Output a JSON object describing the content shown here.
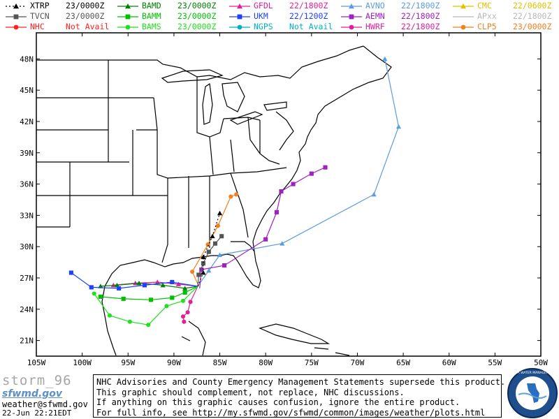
{
  "legend": [
    {
      "code": "XTRP",
      "time": "23/0000Z",
      "color": "#000000",
      "marker": "tri",
      "dash": "2,3"
    },
    {
      "code": "TVCN",
      "time": "23/0000Z",
      "color": "#555555",
      "marker": "square",
      "dash": ""
    },
    {
      "code": "NHC",
      "time": "Not Avail",
      "color": "#ff2020",
      "marker": "circle",
      "dash": ""
    },
    {
      "code": "BAMD",
      "time": "23/0000Z",
      "color": "#008000",
      "marker": "tri",
      "dash": ""
    },
    {
      "code": "BAMM",
      "time": "23/0000Z",
      "color": "#00c000",
      "marker": "square",
      "dash": ""
    },
    {
      "code": "BAMS",
      "time": "23/0000Z",
      "color": "#20e020",
      "marker": "circle",
      "dash": ""
    },
    {
      "code": "GFDL",
      "time": "22/1800Z",
      "color": "#e0209a",
      "marker": "tri",
      "dash": ""
    },
    {
      "code": "UKM",
      "time": "22/1200Z",
      "color": "#2040ff",
      "marker": "square",
      "dash": ""
    },
    {
      "code": "NGPS",
      "time": "Not Avail",
      "color": "#00b0c0",
      "marker": "circle",
      "dash": ""
    },
    {
      "code": "AVNO",
      "time": "22/1800Z",
      "color": "#5b9be0",
      "marker": "tri",
      "dash": ""
    },
    {
      "code": "AEMN",
      "time": "22/1800Z",
      "color": "#a020c0",
      "marker": "square",
      "dash": ""
    },
    {
      "code": "HWRF",
      "time": "22/1800Z",
      "color": "#e0209a",
      "marker": "circle",
      "dash": ""
    },
    {
      "code": "CMC",
      "time": "22/0600Z",
      "color": "#e0c000",
      "marker": "tri",
      "dash": ""
    },
    {
      "code": "APxx",
      "time": "22/1800Z",
      "color": "#b8b8b8",
      "marker": "none",
      "dash": ""
    },
    {
      "code": "CLP5",
      "time": "23/0000Z",
      "color": "#f08020",
      "marker": "circle",
      "dash": ""
    }
  ],
  "axes": {
    "lat_labels": [
      "48N",
      "45N",
      "42N",
      "39N",
      "36N",
      "33N",
      "30N",
      "27N",
      "24N",
      "21N"
    ],
    "lon_labels": [
      "105W",
      "100W",
      "95W",
      "90W",
      "85W",
      "80W",
      "75W",
      "70W",
      "65W",
      "60W",
      "55W",
      "50W"
    ],
    "lat_range": [
      19.5,
      50.5
    ],
    "lon_range": [
      -105,
      -50
    ],
    "grid": false
  },
  "tracks": [
    {
      "model": "AVNO",
      "points": [
        [
          -87.4,
          26.2
        ],
        [
          -86.2,
          27.7
        ],
        [
          -85.0,
          29.2
        ],
        [
          -78.2,
          30.3
        ],
        [
          -68.2,
          35.0
        ],
        [
          -65.5,
          41.5
        ],
        [
          -67.0,
          48.0
        ]
      ]
    },
    {
      "model": "AEMN",
      "points": [
        [
          -87.2,
          26.0
        ],
        [
          -87.0,
          27.8
        ],
        [
          -84.5,
          28.2
        ],
        [
          -80.0,
          30.7
        ],
        [
          -78.8,
          33.3
        ],
        [
          -78.3,
          35.3
        ],
        [
          -77.0,
          36.0
        ],
        [
          -75.0,
          37.0
        ],
        [
          -73.5,
          37.6
        ]
      ]
    },
    {
      "model": "CLP5",
      "points": [
        [
          -87.3,
          26.2
        ],
        [
          -88.0,
          27.6
        ],
        [
          -86.3,
          30.2
        ],
        [
          -85.2,
          32.0
        ],
        [
          -83.8,
          34.8
        ],
        [
          -83.2,
          35.0
        ]
      ]
    },
    {
      "model": "TVCN",
      "points": [
        [
          -87.4,
          26.2
        ],
        [
          -87.3,
          27.3
        ],
        [
          -86.8,
          28.4
        ],
        [
          -86.2,
          29.5
        ],
        [
          -85.5,
          30.3
        ],
        [
          -84.8,
          31.0
        ]
      ]
    },
    {
      "model": "XTRP",
      "points": [
        [
          -87.4,
          26.2
        ],
        [
          -86.8,
          27.5
        ],
        [
          -86.8,
          29.0
        ],
        [
          -85.8,
          31.0
        ],
        [
          -85.0,
          33.2
        ]
      ]
    },
    {
      "model": "GFDL",
      "points": [
        [
          -87.4,
          26.2
        ],
        [
          -89.5,
          26.4
        ],
        [
          -91.8,
          26.6
        ],
        [
          -94.2,
          26.5
        ],
        [
          -96.6,
          26.3
        ]
      ]
    },
    {
      "model": "HWRF",
      "points": [
        [
          -87.4,
          26.2
        ],
        [
          -88.2,
          24.7
        ],
        [
          -88.5,
          23.7
        ],
        [
          -89.0,
          23.3
        ],
        [
          -88.9,
          22.8
        ]
      ]
    },
    {
      "model": "BAMD",
      "points": [
        [
          -87.4,
          26.2
        ],
        [
          -88.8,
          26.0
        ],
        [
          -91.2,
          26.3
        ],
        [
          -93.8,
          26.5
        ],
        [
          -96.2,
          26.3
        ],
        [
          -98.0,
          26.2
        ]
      ]
    },
    {
      "model": "BAMM",
      "points": [
        [
          -87.4,
          26.2
        ],
        [
          -88.8,
          25.6
        ],
        [
          -90.2,
          25.1
        ],
        [
          -92.5,
          24.9
        ],
        [
          -95.5,
          25.0
        ],
        [
          -98.0,
          25.2
        ]
      ]
    },
    {
      "model": "BAMS",
      "points": [
        [
          -87.4,
          26.2
        ],
        [
          -89.0,
          24.8
        ],
        [
          -90.8,
          24.3
        ],
        [
          -92.8,
          22.5
        ],
        [
          -94.8,
          22.8
        ],
        [
          -97.0,
          23.4
        ],
        [
          -98.7,
          25.5
        ]
      ]
    },
    {
      "model": "UKM",
      "points": [
        [
          -87.4,
          26.2
        ],
        [
          -90.2,
          26.6
        ],
        [
          -93.2,
          26.3
        ],
        [
          -96.0,
          26.0
        ],
        [
          -99.0,
          26.1
        ],
        [
          -101.2,
          27.5
        ]
      ]
    }
  ],
  "footer": {
    "storm_label": "storm_96",
    "logo_text": "sfwmd.gov",
    "email": "weather@sfwmd.gov",
    "datetime": "22-Jun 22:21EDT",
    "disclaimer": [
      "NHC Advisories and County Emergency Management Statements supersede this product.",
      "This graphic should complement, not replace, NHC discussions.",
      "If anything on this graphic causes confusion, ignore the entire product.",
      "For full info, see  http://my.sfwmd.gov/sfwmd/common/images/weather/plots.html"
    ],
    "seal_text": "SOUTH FLORIDA WATER MANAGEMENT DISTRICT"
  }
}
